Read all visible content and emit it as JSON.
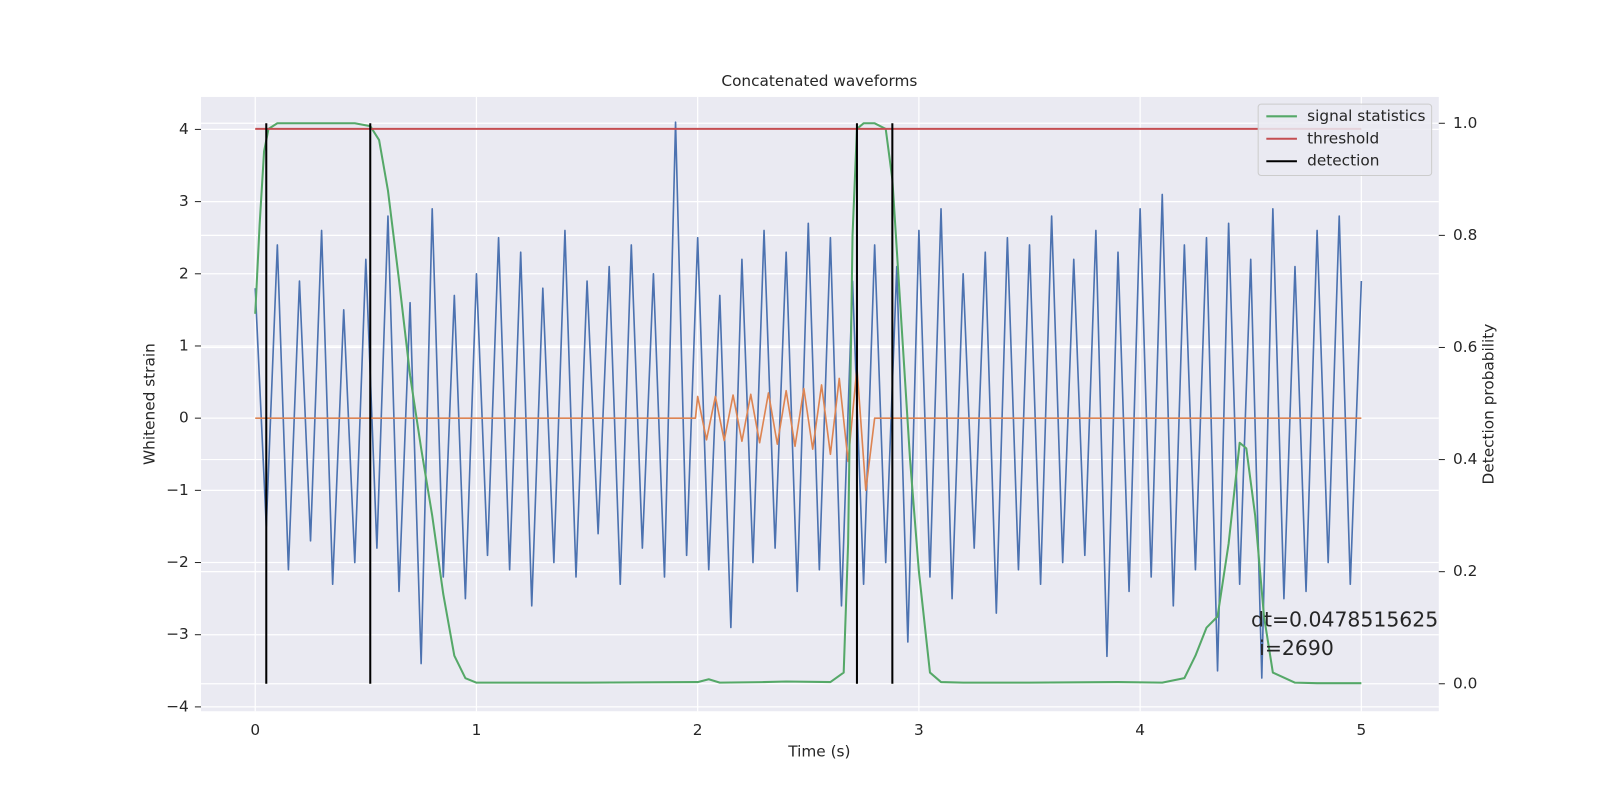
{
  "chart_data": {
    "type": "line",
    "title": "Concatenated waveforms",
    "xlabel": "Time (s)",
    "ylabel": "Whitened strain",
    "y2label": "Detection probability",
    "xlim": [
      -0.245,
      5.35
    ],
    "ylim": [
      -4.06,
      4.45
    ],
    "y2lim": [
      -0.049,
      1.047
    ],
    "xticks": [
      0,
      1,
      2,
      3,
      4,
      5
    ],
    "yticks": [
      {
        "value": -4,
        "label": "−4"
      },
      {
        "value": -3,
        "label": "−3"
      },
      {
        "value": -2,
        "label": "−2"
      },
      {
        "value": -1,
        "label": "−1"
      },
      0,
      1,
      2,
      3,
      4
    ],
    "y2ticks": [
      {
        "value": 0,
        "label": "0.0"
      },
      {
        "value": 0.2,
        "label": "0.2"
      },
      {
        "value": 0.4,
        "label": "0.4"
      },
      {
        "value": 0.6,
        "label": "0.6"
      },
      {
        "value": 0.8,
        "label": "0.8"
      },
      {
        "value": 1,
        "label": "1.0"
      }
    ],
    "grid": true,
    "legend": "upper right",
    "series": [
      {
        "color": "#4c72b0",
        "x": [
          0,
          0.05,
          0.1,
          0.15,
          0.2,
          0.25,
          0.3,
          0.35,
          0.4,
          0.45,
          0.5,
          0.55,
          0.6,
          0.65,
          0.7,
          0.75,
          0.8,
          0.85,
          0.9,
          0.95,
          1,
          1.05,
          1.1,
          1.15,
          1.2,
          1.25,
          1.3,
          1.35,
          1.4,
          1.45,
          1.5,
          1.55,
          1.6,
          1.65,
          1.7,
          1.75,
          1.8,
          1.85,
          1.9,
          1.95,
          2,
          2.05,
          2.1,
          2.15,
          2.2,
          2.25,
          2.3,
          2.35,
          2.4,
          2.45,
          2.5,
          2.55,
          2.6,
          2.65,
          2.7,
          2.75,
          2.8,
          2.85,
          2.9,
          2.95,
          3,
          3.05,
          3.1,
          3.15,
          3.2,
          3.25,
          3.3,
          3.35,
          3.4,
          3.45,
          3.5,
          3.55,
          3.6,
          3.65,
          3.7,
          3.75,
          3.8,
          3.85,
          3.9,
          3.95,
          4,
          4.05,
          4.1,
          4.15,
          4.2,
          4.25,
          4.3,
          4.35,
          4.4,
          4.45,
          4.5,
          4.55,
          4.6,
          4.65,
          4.7,
          4.75,
          4.8,
          4.85,
          4.9,
          4.95,
          5
        ],
        "values": [
          1.8,
          -1.5,
          2.4,
          -2.1,
          1.9,
          -1.7,
          2.6,
          -2.3,
          1.5,
          -2.0,
          2.2,
          -1.8,
          2.8,
          -2.4,
          1.6,
          -3.4,
          2.9,
          -2.2,
          1.7,
          -2.5,
          2.0,
          -1.9,
          2.5,
          -2.1,
          2.3,
          -2.6,
          1.8,
          -2.0,
          2.6,
          -2.2,
          1.9,
          -1.6,
          2.1,
          -2.3,
          2.4,
          -1.8,
          2.0,
          -2.2,
          4.1,
          -1.9,
          2.5,
          -2.1,
          1.7,
          -2.9,
          2.2,
          -2.0,
          2.6,
          -1.8,
          2.3,
          -2.4,
          2.7,
          -2.1,
          2.5,
          -2.6,
          1.9,
          -2.3,
          2.4,
          -2.0,
          2.1,
          -3.1,
          2.6,
          -2.2,
          2.9,
          -2.5,
          2.0,
          -1.8,
          2.3,
          -2.7,
          2.5,
          -2.1,
          2.4,
          -2.3,
          2.8,
          -2.0,
          2.2,
          -1.9,
          2.6,
          -3.3,
          2.3,
          -2.4,
          2.9,
          -2.2,
          3.1,
          -2.6,
          2.4,
          -2.1,
          2.5,
          -3.5,
          2.7,
          -2.3,
          2.2,
          -3.6,
          2.9,
          -2.5,
          2.1,
          -2.4,
          2.6,
          -2.0,
          2.8,
          -2.3,
          1.9
        ]
      },
      {
        "color": "#dd8452",
        "x": [
          0,
          1.99,
          2.0,
          2.04,
          2.08,
          2.12,
          2.16,
          2.2,
          2.24,
          2.28,
          2.32,
          2.36,
          2.4,
          2.44,
          2.48,
          2.52,
          2.56,
          2.6,
          2.64,
          2.68,
          2.72,
          2.76,
          2.8,
          5
        ],
        "values": [
          0,
          0,
          0.3,
          -0.3,
          0.3,
          -0.31,
          0.32,
          -0.32,
          0.33,
          -0.34,
          0.35,
          -0.36,
          0.38,
          -0.39,
          0.41,
          -0.43,
          0.46,
          -0.5,
          0.55,
          -0.6,
          0.7,
          -1.0,
          0,
          0
        ]
      },
      {
        "name": "signal statistics",
        "color": "#55a868",
        "axis": "y2",
        "x": [
          0,
          0.02,
          0.04,
          0.06,
          0.1,
          0.2,
          0.3,
          0.45,
          0.52,
          0.56,
          0.6,
          0.65,
          0.7,
          0.75,
          0.8,
          0.85,
          0.9,
          0.95,
          1.0,
          1.5,
          2.0,
          2.05,
          2.1,
          2.3,
          2.4,
          2.6,
          2.66,
          2.68,
          2.7,
          2.72,
          2.75,
          2.8,
          2.85,
          2.88,
          2.92,
          2.96,
          3.0,
          3.05,
          3.1,
          3.2,
          3.5,
          3.9,
          4.1,
          4.2,
          4.25,
          4.3,
          4.35,
          4.4,
          4.45,
          4.48,
          4.52,
          4.56,
          4.6,
          4.7,
          4.8,
          5.0
        ],
        "values": [
          0.66,
          0.82,
          0.95,
          0.99,
          1.0,
          1.0,
          1.0,
          1.0,
          0.995,
          0.97,
          0.88,
          0.72,
          0.55,
          0.42,
          0.3,
          0.16,
          0.05,
          0.01,
          0.002,
          0.002,
          0.003,
          0.008,
          0.002,
          0.003,
          0.004,
          0.003,
          0.02,
          0.25,
          0.8,
          0.99,
          1.0,
          1.0,
          0.99,
          0.9,
          0.65,
          0.4,
          0.2,
          0.02,
          0.003,
          0.002,
          0.002,
          0.003,
          0.002,
          0.01,
          0.05,
          0.1,
          0.12,
          0.25,
          0.43,
          0.42,
          0.3,
          0.12,
          0.02,
          0.002,
          0.001,
          0.001
        ]
      },
      {
        "name": "threshold",
        "color": "#c44e52",
        "axis": "y2",
        "x": [
          0,
          5
        ],
        "values": [
          0.99,
          0.99
        ]
      },
      {
        "name": "detection",
        "color": "#000000",
        "mark": "vline",
        "x": [
          0.05,
          0.52,
          2.72,
          2.88
        ]
      }
    ],
    "annotations": [
      "dt=0.0478515625",
      "i=2690"
    ]
  }
}
